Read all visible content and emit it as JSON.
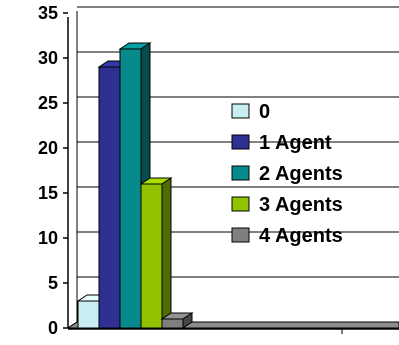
{
  "chart_data": {
    "type": "bar",
    "title": "",
    "xlabel": "",
    "ylabel": "",
    "ylim": [
      0,
      35
    ],
    "yticks": [
      0,
      5,
      10,
      15,
      20,
      25,
      30,
      35
    ],
    "grid": true,
    "style": "3d-bars",
    "legend_position": "right",
    "series": [
      {
        "name": "0",
        "values": [
          3
        ],
        "color": "#c9eef2"
      },
      {
        "name": "1 Agent",
        "values": [
          29
        ],
        "color": "#2e3192"
      },
      {
        "name": "2 Agents",
        "values": [
          31
        ],
        "color": "#078a8c"
      },
      {
        "name": "3 Agents",
        "values": [
          16
        ],
        "color": "#92c200"
      },
      {
        "name": "4 Agents",
        "values": [
          1
        ],
        "color": "#7f7f7f"
      }
    ]
  }
}
